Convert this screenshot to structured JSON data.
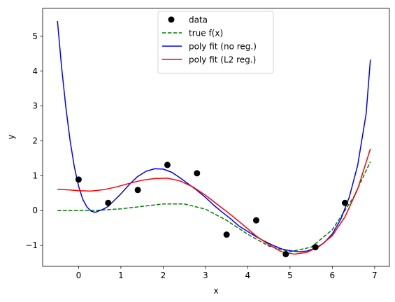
{
  "chart_data": {
    "type": "line",
    "title": "",
    "xlabel": "x",
    "ylabel": "y",
    "xlim": [
      -0.85,
      7.35
    ],
    "ylim": [
      -1.6,
      5.8
    ],
    "grid": false,
    "legend_position": "upper-center",
    "xticks": [
      0,
      1,
      2,
      3,
      4,
      5,
      6,
      7
    ],
    "yticks": [
      -1,
      0,
      1,
      2,
      3,
      4,
      5
    ],
    "series": [
      {
        "name": "data",
        "kind": "scatter",
        "color": "#000000",
        "x": [
          0.0,
          0.7,
          1.4,
          2.1,
          2.8,
          3.5,
          4.2,
          4.9,
          5.6,
          6.3
        ],
        "y": [
          0.89,
          0.22,
          0.59,
          1.31,
          1.07,
          -0.69,
          -0.28,
          -1.25,
          -1.05,
          0.22
        ]
      },
      {
        "name": "true f(x)",
        "kind": "line",
        "style": "dashed",
        "color": "#008000",
        "x": [
          -0.5,
          0.0,
          0.5,
          1.0,
          1.5,
          2.0,
          2.5,
          3.0,
          3.5,
          4.0,
          4.5,
          5.0,
          5.5,
          6.0,
          6.5,
          6.9
        ],
        "y": [
          0.0,
          0.0,
          0.01,
          0.05,
          0.12,
          0.19,
          0.19,
          0.04,
          -0.28,
          -0.68,
          -1.02,
          -1.18,
          -1.05,
          -0.55,
          0.38,
          1.4
        ]
      },
      {
        "name": "poly fit (no reg.)",
        "kind": "line",
        "style": "solid",
        "color": "#0000ff",
        "x": [
          -0.5,
          -0.4,
          -0.3,
          -0.2,
          -0.1,
          0.0,
          0.1,
          0.2,
          0.3,
          0.4,
          0.5,
          0.6,
          0.7,
          0.8,
          1.0,
          1.2,
          1.4,
          1.6,
          1.8,
          2.0,
          2.2,
          2.4,
          2.6,
          2.8,
          3.0,
          3.2,
          3.4,
          3.6,
          3.8,
          4.0,
          4.2,
          4.4,
          4.6,
          4.8,
          5.0,
          5.2,
          5.4,
          5.6,
          5.8,
          6.0,
          6.2,
          6.4,
          6.6,
          6.8,
          6.9
        ],
        "y": [
          5.44,
          4.09,
          2.95,
          2.0,
          1.25,
          0.7,
          0.32,
          0.1,
          -0.02,
          -0.05,
          0.0,
          0.05,
          0.12,
          0.24,
          0.48,
          0.75,
          0.98,
          1.13,
          1.2,
          1.19,
          1.1,
          0.94,
          0.76,
          0.58,
          0.38,
          0.15,
          -0.05,
          -0.24,
          -0.45,
          -0.6,
          -0.75,
          -0.88,
          -1.0,
          -1.1,
          -1.15,
          -1.18,
          -1.16,
          -1.08,
          -0.93,
          -0.67,
          -0.25,
          0.38,
          1.3,
          2.78,
          4.33
        ]
      },
      {
        "name": "poly fit (L2 reg.)",
        "kind": "line",
        "style": "solid",
        "color": "#ff0000",
        "x": [
          -0.5,
          -0.2,
          0.0,
          0.3,
          0.6,
          0.9,
          1.2,
          1.5,
          1.8,
          2.1,
          2.4,
          2.7,
          3.0,
          3.3,
          3.6,
          3.9,
          4.2,
          4.5,
          4.8,
          5.1,
          5.4,
          5.7,
          6.0,
          6.3,
          6.6,
          6.9
        ],
        "y": [
          0.61,
          0.59,
          0.57,
          0.56,
          0.6,
          0.68,
          0.78,
          0.87,
          0.92,
          0.93,
          0.85,
          0.68,
          0.44,
          0.16,
          -0.12,
          -0.42,
          -0.73,
          -0.98,
          -1.18,
          -1.25,
          -1.2,
          -1.02,
          -0.72,
          -0.18,
          0.62,
          1.77
        ]
      }
    ]
  }
}
